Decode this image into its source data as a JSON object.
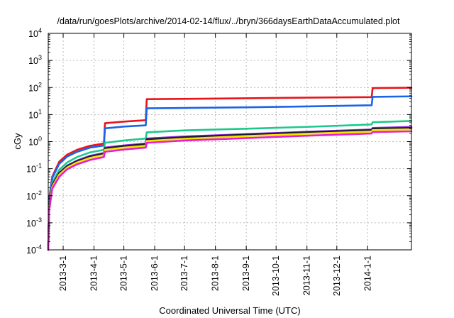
{
  "chart_data": {
    "type": "line",
    "title": "/data/run/goesPlots/archive/2014-02-14/flux/../bryn/366daysEarthDataAccumulated.plot",
    "xlabel": "Coordinated Universal Time (UTC)",
    "ylabel": "cGy",
    "yscale": "log",
    "ylim": [
      0.0001,
      10000
    ],
    "xlim": [
      "2013-02-14",
      "2014-02-14"
    ],
    "grid": true,
    "legend": "none",
    "y_ticks": [
      {
        "value": 0.0001,
        "base": "10",
        "exp": "-4"
      },
      {
        "value": 0.001,
        "base": "10",
        "exp": "-3"
      },
      {
        "value": 0.01,
        "base": "10",
        "exp": "-2"
      },
      {
        "value": 0.1,
        "base": "10",
        "exp": "-1"
      },
      {
        "value": 1,
        "base": "10",
        "exp": "0"
      },
      {
        "value": 10,
        "base": "10",
        "exp": "1"
      },
      {
        "value": 100,
        "base": "10",
        "exp": "2"
      },
      {
        "value": 1000,
        "base": "10",
        "exp": "3"
      },
      {
        "value": 10000,
        "base": "10",
        "exp": "4"
      }
    ],
    "x_ticks": [
      {
        "date": "2013-03-01",
        "label": "2013-3-1"
      },
      {
        "date": "2013-04-01",
        "label": "2013-4-1"
      },
      {
        "date": "2013-05-01",
        "label": "2013-5-1"
      },
      {
        "date": "2013-06-01",
        "label": "2013-6-1"
      },
      {
        "date": "2013-07-01",
        "label": "2013-7-1"
      },
      {
        "date": "2013-08-01",
        "label": "2013-8-1"
      },
      {
        "date": "2013-09-01",
        "label": "2013-9-1"
      },
      {
        "date": "2013-10-01",
        "label": "2013-10-1"
      },
      {
        "date": "2013-11-01",
        "label": "2013-11-1"
      },
      {
        "date": "2013-12-01",
        "label": "2013-12-1"
      },
      {
        "date": "2014-01-01",
        "label": "2014-1-1"
      }
    ],
    "series": [
      {
        "color": "#e8141b",
        "points": [
          [
            "2013-02-14",
            0.0001
          ],
          [
            "2013-02-15",
            0.008
          ],
          [
            "2013-02-18",
            0.05
          ],
          [
            "2013-02-25",
            0.18
          ],
          [
            "2013-03-05",
            0.33
          ],
          [
            "2013-03-15",
            0.5
          ],
          [
            "2013-03-28",
            0.7
          ],
          [
            "2013-04-11",
            0.85
          ],
          [
            "2013-04-12",
            4.8
          ],
          [
            "2013-05-01",
            5.5
          ],
          [
            "2013-05-23",
            6.2
          ],
          [
            "2013-05-24",
            37
          ],
          [
            "2013-07-01",
            38
          ],
          [
            "2013-09-01",
            40
          ],
          [
            "2013-11-01",
            42
          ],
          [
            "2014-01-05",
            44
          ],
          [
            "2014-01-06",
            95
          ],
          [
            "2014-02-14",
            98
          ]
        ]
      },
      {
        "color": "#1a64e8",
        "points": [
          [
            "2013-02-14",
            0.0001
          ],
          [
            "2013-02-15",
            0.007
          ],
          [
            "2013-02-18",
            0.045
          ],
          [
            "2013-02-25",
            0.15
          ],
          [
            "2013-03-05",
            0.28
          ],
          [
            "2013-03-15",
            0.42
          ],
          [
            "2013-03-28",
            0.6
          ],
          [
            "2013-04-11",
            0.72
          ],
          [
            "2013-04-12",
            3.1
          ],
          [
            "2013-05-01",
            3.6
          ],
          [
            "2013-05-23",
            4.0
          ],
          [
            "2013-05-24",
            17
          ],
          [
            "2013-07-01",
            17.5
          ],
          [
            "2013-09-01",
            18.5
          ],
          [
            "2013-11-01",
            20
          ],
          [
            "2014-01-05",
            22
          ],
          [
            "2014-01-06",
            45
          ],
          [
            "2014-02-14",
            47
          ]
        ]
      },
      {
        "color": "#1ec88c",
        "points": [
          [
            "2013-02-14",
            0.0001
          ],
          [
            "2013-02-15",
            0.005
          ],
          [
            "2013-02-18",
            0.03
          ],
          [
            "2013-02-25",
            0.09
          ],
          [
            "2013-03-05",
            0.17
          ],
          [
            "2013-03-15",
            0.27
          ],
          [
            "2013-03-28",
            0.4
          ],
          [
            "2013-04-11",
            0.5
          ],
          [
            "2013-04-12",
            0.9
          ],
          [
            "2013-05-01",
            1.1
          ],
          [
            "2013-05-23",
            1.3
          ],
          [
            "2013-05-24",
            2.2
          ],
          [
            "2013-07-01",
            2.6
          ],
          [
            "2013-09-01",
            3.0
          ],
          [
            "2013-11-01",
            3.5
          ],
          [
            "2014-01-05",
            4.3
          ],
          [
            "2014-01-06",
            5.2
          ],
          [
            "2014-02-14",
            5.8
          ]
        ]
      },
      {
        "color": "#8a2be2",
        "points": [
          [
            "2013-02-14",
            0.0001
          ],
          [
            "2013-02-15",
            0.004
          ],
          [
            "2013-02-18",
            0.025
          ],
          [
            "2013-02-25",
            0.07
          ],
          [
            "2013-03-05",
            0.13
          ],
          [
            "2013-03-15",
            0.2
          ],
          [
            "2013-03-28",
            0.3
          ],
          [
            "2013-04-11",
            0.38
          ],
          [
            "2013-04-12",
            0.6
          ],
          [
            "2013-05-01",
            0.72
          ],
          [
            "2013-05-23",
            0.85
          ],
          [
            "2013-05-24",
            1.3
          ],
          [
            "2013-07-01",
            1.55
          ],
          [
            "2013-09-01",
            1.9
          ],
          [
            "2013-11-01",
            2.3
          ],
          [
            "2014-01-05",
            2.8
          ],
          [
            "2014-01-06",
            3.2
          ],
          [
            "2014-02-14",
            3.5
          ]
        ]
      },
      {
        "color": "#1a1a2e",
        "points": [
          [
            "2013-02-14",
            0.0001
          ],
          [
            "2013-02-15",
            0.004
          ],
          [
            "2013-02-18",
            0.024
          ],
          [
            "2013-02-25",
            0.068
          ],
          [
            "2013-03-05",
            0.125
          ],
          [
            "2013-03-15",
            0.19
          ],
          [
            "2013-03-28",
            0.28
          ],
          [
            "2013-04-11",
            0.36
          ],
          [
            "2013-04-12",
            0.56
          ],
          [
            "2013-05-01",
            0.68
          ],
          [
            "2013-05-23",
            0.8
          ],
          [
            "2013-05-24",
            1.2
          ],
          [
            "2013-07-01",
            1.45
          ],
          [
            "2013-09-01",
            1.8
          ],
          [
            "2013-11-01",
            2.2
          ],
          [
            "2014-01-05",
            2.65
          ],
          [
            "2014-01-06",
            3.0
          ],
          [
            "2014-02-14",
            3.2
          ]
        ]
      },
      {
        "color": "#f2e600",
        "points": [
          [
            "2013-02-14",
            0.0001
          ],
          [
            "2013-02-15",
            0.0035
          ],
          [
            "2013-02-18",
            0.021
          ],
          [
            "2013-02-25",
            0.06
          ],
          [
            "2013-03-05",
            0.11
          ],
          [
            "2013-03-15",
            0.17
          ],
          [
            "2013-03-28",
            0.25
          ],
          [
            "2013-04-11",
            0.32
          ],
          [
            "2013-04-12",
            0.5
          ],
          [
            "2013-05-01",
            0.6
          ],
          [
            "2013-05-23",
            0.7
          ],
          [
            "2013-05-24",
            1.05
          ],
          [
            "2013-07-01",
            1.27
          ],
          [
            "2013-09-01",
            1.6
          ],
          [
            "2013-11-01",
            1.95
          ],
          [
            "2014-01-05",
            2.35
          ],
          [
            "2014-01-06",
            2.65
          ],
          [
            "2014-02-14",
            2.85
          ]
        ]
      },
      {
        "color": "#e61ed2",
        "points": [
          [
            "2013-02-14",
            0.0001
          ],
          [
            "2013-02-15",
            0.003
          ],
          [
            "2013-02-18",
            0.018
          ],
          [
            "2013-02-25",
            0.05
          ],
          [
            "2013-03-05",
            0.095
          ],
          [
            "2013-03-15",
            0.145
          ],
          [
            "2013-03-28",
            0.21
          ],
          [
            "2013-04-11",
            0.27
          ],
          [
            "2013-04-12",
            0.42
          ],
          [
            "2013-05-01",
            0.51
          ],
          [
            "2013-05-23",
            0.6
          ],
          [
            "2013-05-24",
            0.9
          ],
          [
            "2013-07-01",
            1.1
          ],
          [
            "2013-09-01",
            1.35
          ],
          [
            "2013-11-01",
            1.65
          ],
          [
            "2014-01-05",
            2.0
          ],
          [
            "2014-01-06",
            2.25
          ],
          [
            "2014-02-14",
            2.4
          ]
        ]
      }
    ]
  }
}
